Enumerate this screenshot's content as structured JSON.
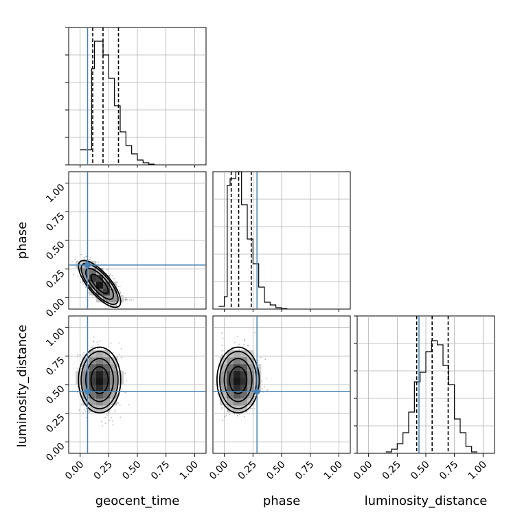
{
  "chart_data": {
    "type": "corner",
    "parameters": [
      "geocent_time",
      "phase",
      "luminosity_distance"
    ],
    "axis_range": [
      -0.1,
      1.1
    ],
    "tick_labels": [
      "0.00",
      "0.25",
      "0.50",
      "0.75",
      "1.00"
    ],
    "tick_values": [
      0,
      0.25,
      0.5,
      0.75,
      1.0
    ],
    "grid": true,
    "truth_color": "#4682b4",
    "hist_color": "#000000",
    "truths": {
      "geocent_time": 0.065,
      "phase": 0.285,
      "luminosity_distance": 0.44
    },
    "histograms": [
      {
        "parameter": "geocent_time",
        "quantiles": [
          0.11,
          0.2,
          0.335
        ],
        "bin_edges": [
          0.0,
          0.05,
          0.1,
          0.125,
          0.15,
          0.2,
          0.25,
          0.3,
          0.35,
          0.4,
          0.45,
          0.5,
          0.55,
          0.6,
          0.65
        ],
        "density": [
          0.11,
          0.11,
          0.7,
          0.9,
          0.9,
          0.8,
          0.63,
          0.43,
          0.24,
          0.14,
          0.08,
          0.035,
          0.015,
          0.005
        ]
      },
      {
        "parameter": "phase",
        "quantiles": [
          0.06,
          0.125,
          0.235
        ],
        "bin_edges": [
          -0.05,
          0.0,
          0.025,
          0.05,
          0.1,
          0.15,
          0.2,
          0.25,
          0.3,
          0.35,
          0.4,
          0.45,
          0.5,
          0.55
        ],
        "density": [
          0.02,
          0.09,
          0.9,
          0.95,
          1.0,
          0.76,
          0.51,
          0.33,
          0.16,
          0.05,
          0.03,
          0.01,
          0.003
        ]
      },
      {
        "parameter": "luminosity_distance",
        "quantiles": [
          0.42,
          0.555,
          0.695
        ],
        "bin_edges": [
          0.15,
          0.2,
          0.25,
          0.3,
          0.35,
          0.4,
          0.45,
          0.5,
          0.55,
          0.6,
          0.65,
          0.7,
          0.75,
          0.8,
          0.85,
          0.9,
          0.95
        ],
        "density": [
          0.01,
          0.03,
          0.07,
          0.15,
          0.3,
          0.52,
          0.59,
          0.74,
          0.82,
          0.79,
          0.64,
          0.5,
          0.25,
          0.15,
          0.05,
          0.01
        ]
      }
    ],
    "joint_2d": [
      {
        "x": "geocent_time",
        "y": "phase",
        "peak": [
          0.17,
          0.12
        ],
        "spread": [
          0.09,
          0.1
        ],
        "correlation": -0.75
      },
      {
        "x": "geocent_time",
        "y": "luminosity_distance",
        "peak": [
          0.17,
          0.54
        ],
        "spread": [
          0.09,
          0.14
        ],
        "correlation": 0.0
      },
      {
        "x": "phase",
        "y": "luminosity_distance",
        "peak": [
          0.12,
          0.54
        ],
        "spread": [
          0.09,
          0.14
        ],
        "correlation": 0.0
      }
    ]
  }
}
